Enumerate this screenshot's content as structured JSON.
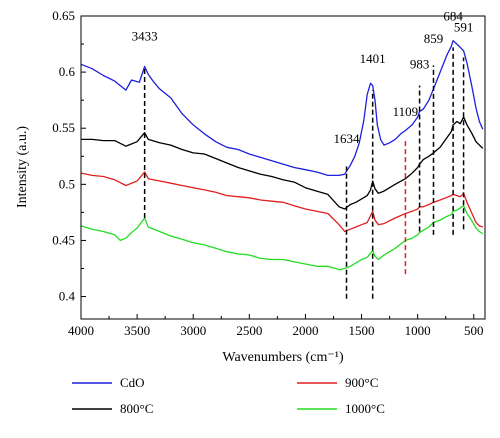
{
  "chart_data": {
    "type": "line",
    "title": "",
    "xlabel": "Wavenumbers (cm⁻¹)",
    "ylabel": "Intensity (a.u.)",
    "xlim": [
      4000,
      400
    ],
    "ylim": [
      0.38,
      0.65
    ],
    "x_axis_reversed": true,
    "x_ticks": [
      4000,
      3500,
      3000,
      2500,
      2000,
      1500,
      1000,
      500
    ],
    "x_tick_labels": [
      "4000",
      "3500",
      "3000",
      "2500",
      "2000",
      "1500",
      "1000",
      "500"
    ],
    "y_ticks": [
      0.4,
      0.45,
      0.5,
      0.55,
      0.6,
      0.65
    ],
    "y_tick_labels": [
      "0.4",
      "0.45",
      "0.5",
      "0.55",
      "0.6",
      "0.65"
    ],
    "grid": false,
    "legend_position": "bottom",
    "series": [
      {
        "name": "CdO",
        "color": "#1f1fdc",
        "points": [
          [
            4000,
            0.607
          ],
          [
            3900,
            0.603
          ],
          [
            3800,
            0.597
          ],
          [
            3700,
            0.592
          ],
          [
            3600,
            0.584
          ],
          [
            3550,
            0.593
          ],
          [
            3480,
            0.591
          ],
          [
            3433,
            0.605
          ],
          [
            3400,
            0.598
          ],
          [
            3350,
            0.591
          ],
          [
            3300,
            0.585
          ],
          [
            3200,
            0.577
          ],
          [
            3100,
            0.563
          ],
          [
            3000,
            0.553
          ],
          [
            2900,
            0.545
          ],
          [
            2800,
            0.538
          ],
          [
            2700,
            0.533
          ],
          [
            2600,
            0.531
          ],
          [
            2500,
            0.527
          ],
          [
            2400,
            0.524
          ],
          [
            2300,
            0.521
          ],
          [
            2200,
            0.518
          ],
          [
            2100,
            0.515
          ],
          [
            2000,
            0.513
          ],
          [
            1900,
            0.511
          ],
          [
            1800,
            0.508
          ],
          [
            1700,
            0.508
          ],
          [
            1650,
            0.509
          ],
          [
            1600,
            0.517
          ],
          [
            1560,
            0.525
          ],
          [
            1520,
            0.537
          ],
          [
            1480,
            0.557
          ],
          [
            1450,
            0.58
          ],
          [
            1420,
            0.59
          ],
          [
            1401,
            0.588
          ],
          [
            1380,
            0.575
          ],
          [
            1360,
            0.553
          ],
          [
            1330,
            0.54
          ],
          [
            1300,
            0.535
          ],
          [
            1250,
            0.537
          ],
          [
            1200,
            0.54
          ],
          [
            1150,
            0.545
          ],
          [
            1109,
            0.548
          ],
          [
            1050,
            0.553
          ],
          [
            1000,
            0.56
          ],
          [
            983,
            0.565
          ],
          [
            950,
            0.567
          ],
          [
            900,
            0.575
          ],
          [
            859,
            0.585
          ],
          [
            820,
            0.595
          ],
          [
            780,
            0.605
          ],
          [
            740,
            0.615
          ],
          [
            700,
            0.623
          ],
          [
            684,
            0.628
          ],
          [
            650,
            0.625
          ],
          [
            620,
            0.622
          ],
          [
            591,
            0.619
          ],
          [
            560,
            0.608
          ],
          [
            520,
            0.589
          ],
          [
            480,
            0.568
          ],
          [
            450,
            0.556
          ],
          [
            420,
            0.549
          ]
        ]
      },
      {
        "name": "800°C",
        "color": "#000000",
        "points": [
          [
            4000,
            0.54
          ],
          [
            3900,
            0.54
          ],
          [
            3800,
            0.539
          ],
          [
            3700,
            0.539
          ],
          [
            3600,
            0.534
          ],
          [
            3500,
            0.538
          ],
          [
            3433,
            0.546
          ],
          [
            3400,
            0.54
          ],
          [
            3300,
            0.537
          ],
          [
            3200,
            0.535
          ],
          [
            3100,
            0.531
          ],
          [
            3000,
            0.528
          ],
          [
            2900,
            0.527
          ],
          [
            2800,
            0.523
          ],
          [
            2700,
            0.519
          ],
          [
            2600,
            0.515
          ],
          [
            2500,
            0.512
          ],
          [
            2400,
            0.509
          ],
          [
            2300,
            0.507
          ],
          [
            2200,
            0.504
          ],
          [
            2100,
            0.502
          ],
          [
            2000,
            0.497
          ],
          [
            1900,
            0.494
          ],
          [
            1800,
            0.491
          ],
          [
            1700,
            0.48
          ],
          [
            1650,
            0.478
          ],
          [
            1600,
            0.482
          ],
          [
            1550,
            0.484
          ],
          [
            1500,
            0.487
          ],
          [
            1450,
            0.49
          ],
          [
            1420,
            0.495
          ],
          [
            1401,
            0.503
          ],
          [
            1380,
            0.496
          ],
          [
            1350,
            0.492
          ],
          [
            1300,
            0.494
          ],
          [
            1200,
            0.5
          ],
          [
            1109,
            0.505
          ],
          [
            1050,
            0.51
          ],
          [
            1000,
            0.515
          ],
          [
            983,
            0.518
          ],
          [
            950,
            0.522
          ],
          [
            900,
            0.525
          ],
          [
            859,
            0.528
          ],
          [
            800,
            0.533
          ],
          [
            750,
            0.54
          ],
          [
            700,
            0.547
          ],
          [
            684,
            0.553
          ],
          [
            650,
            0.556
          ],
          [
            620,
            0.554
          ],
          [
            591,
            0.56
          ],
          [
            560,
            0.553
          ],
          [
            520,
            0.546
          ],
          [
            480,
            0.538
          ],
          [
            450,
            0.535
          ],
          [
            420,
            0.532
          ]
        ]
      },
      {
        "name": "900°C",
        "color": "#e02020",
        "points": [
          [
            4000,
            0.51
          ],
          [
            3900,
            0.508
          ],
          [
            3800,
            0.507
          ],
          [
            3700,
            0.504
          ],
          [
            3600,
            0.499
          ],
          [
            3500,
            0.503
          ],
          [
            3433,
            0.511
          ],
          [
            3400,
            0.505
          ],
          [
            3300,
            0.503
          ],
          [
            3200,
            0.501
          ],
          [
            3100,
            0.499
          ],
          [
            3000,
            0.497
          ],
          [
            2900,
            0.495
          ],
          [
            2800,
            0.493
          ],
          [
            2700,
            0.49
          ],
          [
            2600,
            0.489
          ],
          [
            2500,
            0.488
          ],
          [
            2400,
            0.486
          ],
          [
            2300,
            0.485
          ],
          [
            2200,
            0.484
          ],
          [
            2100,
            0.481
          ],
          [
            2000,
            0.478
          ],
          [
            1900,
            0.476
          ],
          [
            1800,
            0.474
          ],
          [
            1700,
            0.464
          ],
          [
            1650,
            0.458
          ],
          [
            1600,
            0.46
          ],
          [
            1550,
            0.462
          ],
          [
            1500,
            0.464
          ],
          [
            1450,
            0.466
          ],
          [
            1401,
            0.476
          ],
          [
            1380,
            0.468
          ],
          [
            1350,
            0.464
          ],
          [
            1300,
            0.465
          ],
          [
            1200,
            0.47
          ],
          [
            1109,
            0.474
          ],
          [
            1050,
            0.476
          ],
          [
            1000,
            0.478
          ],
          [
            983,
            0.48
          ],
          [
            950,
            0.48
          ],
          [
            900,
            0.482
          ],
          [
            859,
            0.484
          ],
          [
            800,
            0.486
          ],
          [
            750,
            0.488
          ],
          [
            700,
            0.49
          ],
          [
            684,
            0.491
          ],
          [
            650,
            0.49
          ],
          [
            620,
            0.489
          ],
          [
            591,
            0.492
          ],
          [
            560,
            0.484
          ],
          [
            520,
            0.475
          ],
          [
            480,
            0.466
          ],
          [
            450,
            0.463
          ],
          [
            420,
            0.462
          ]
        ]
      },
      {
        "name": "1000°C",
        "color": "#22dd22",
        "points": [
          [
            4000,
            0.463
          ],
          [
            3900,
            0.46
          ],
          [
            3800,
            0.458
          ],
          [
            3700,
            0.455
          ],
          [
            3650,
            0.45
          ],
          [
            3600,
            0.452
          ],
          [
            3550,
            0.457
          ],
          [
            3500,
            0.461
          ],
          [
            3433,
            0.47
          ],
          [
            3400,
            0.462
          ],
          [
            3300,
            0.458
          ],
          [
            3200,
            0.454
          ],
          [
            3100,
            0.451
          ],
          [
            3000,
            0.448
          ],
          [
            2900,
            0.446
          ],
          [
            2800,
            0.443
          ],
          [
            2700,
            0.44
          ],
          [
            2600,
            0.438
          ],
          [
            2500,
            0.437
          ],
          [
            2400,
            0.434
          ],
          [
            2300,
            0.433
          ],
          [
            2200,
            0.433
          ],
          [
            2100,
            0.431
          ],
          [
            2000,
            0.429
          ],
          [
            1900,
            0.427
          ],
          [
            1800,
            0.427
          ],
          [
            1700,
            0.424
          ],
          [
            1650,
            0.425
          ],
          [
            1600,
            0.427
          ],
          [
            1550,
            0.43
          ],
          [
            1500,
            0.433
          ],
          [
            1450,
            0.435
          ],
          [
            1401,
            0.441
          ],
          [
            1380,
            0.436
          ],
          [
            1350,
            0.433
          ],
          [
            1300,
            0.437
          ],
          [
            1200,
            0.443
          ],
          [
            1109,
            0.45
          ],
          [
            1050,
            0.452
          ],
          [
            1000,
            0.455
          ],
          [
            983,
            0.457
          ],
          [
            950,
            0.459
          ],
          [
            900,
            0.462
          ],
          [
            859,
            0.466
          ],
          [
            800,
            0.468
          ],
          [
            750,
            0.471
          ],
          [
            700,
            0.473
          ],
          [
            684,
            0.476
          ],
          [
            650,
            0.477
          ],
          [
            620,
            0.479
          ],
          [
            591,
            0.481
          ],
          [
            560,
            0.474
          ],
          [
            520,
            0.468
          ],
          [
            480,
            0.461
          ],
          [
            450,
            0.458
          ],
          [
            420,
            0.456
          ]
        ]
      }
    ],
    "annotations": [
      {
        "label": "3433",
        "x": 3433,
        "color": "#000000",
        "y_from": 0.47,
        "y_to": 0.603,
        "text_y": 0.628
      },
      {
        "label": "1634",
        "x": 1634,
        "color": "#000000",
        "y_from": 0.398,
        "y_to": 0.516,
        "text_y": 0.537
      },
      {
        "label": "1401",
        "x": 1401,
        "color": "#000000",
        "y_from": 0.398,
        "y_to": 0.584,
        "text_y": 0.608
      },
      {
        "label": "1109",
        "x": 1109,
        "color": "#e02020",
        "y_from": 0.42,
        "y_to": 0.54,
        "text_y": 0.561
      },
      {
        "label": "983",
        "x": 983,
        "color": "#000000",
        "y_from": 0.458,
        "y_to": 0.588,
        "text_y": 0.603
      },
      {
        "label": "859",
        "x": 859,
        "color": "#000000",
        "y_from": 0.455,
        "y_to": 0.606,
        "text_y": 0.626
      },
      {
        "label": "684",
        "x": 684,
        "color": "#000000",
        "y_from": 0.455,
        "y_to": 0.622,
        "text_y": 0.646
      },
      {
        "label": "591",
        "x": 591,
        "color": "#000000",
        "y_from": 0.46,
        "y_to": 0.613,
        "text_y": 0.636
      }
    ]
  },
  "legend": [
    {
      "label": "CdO",
      "color": "#1f1fdc"
    },
    {
      "label": "900°C",
      "color": "#e02020"
    },
    {
      "label": "800°C",
      "color": "#000000"
    },
    {
      "label": "1000°C",
      "color": "#22dd22"
    }
  ]
}
